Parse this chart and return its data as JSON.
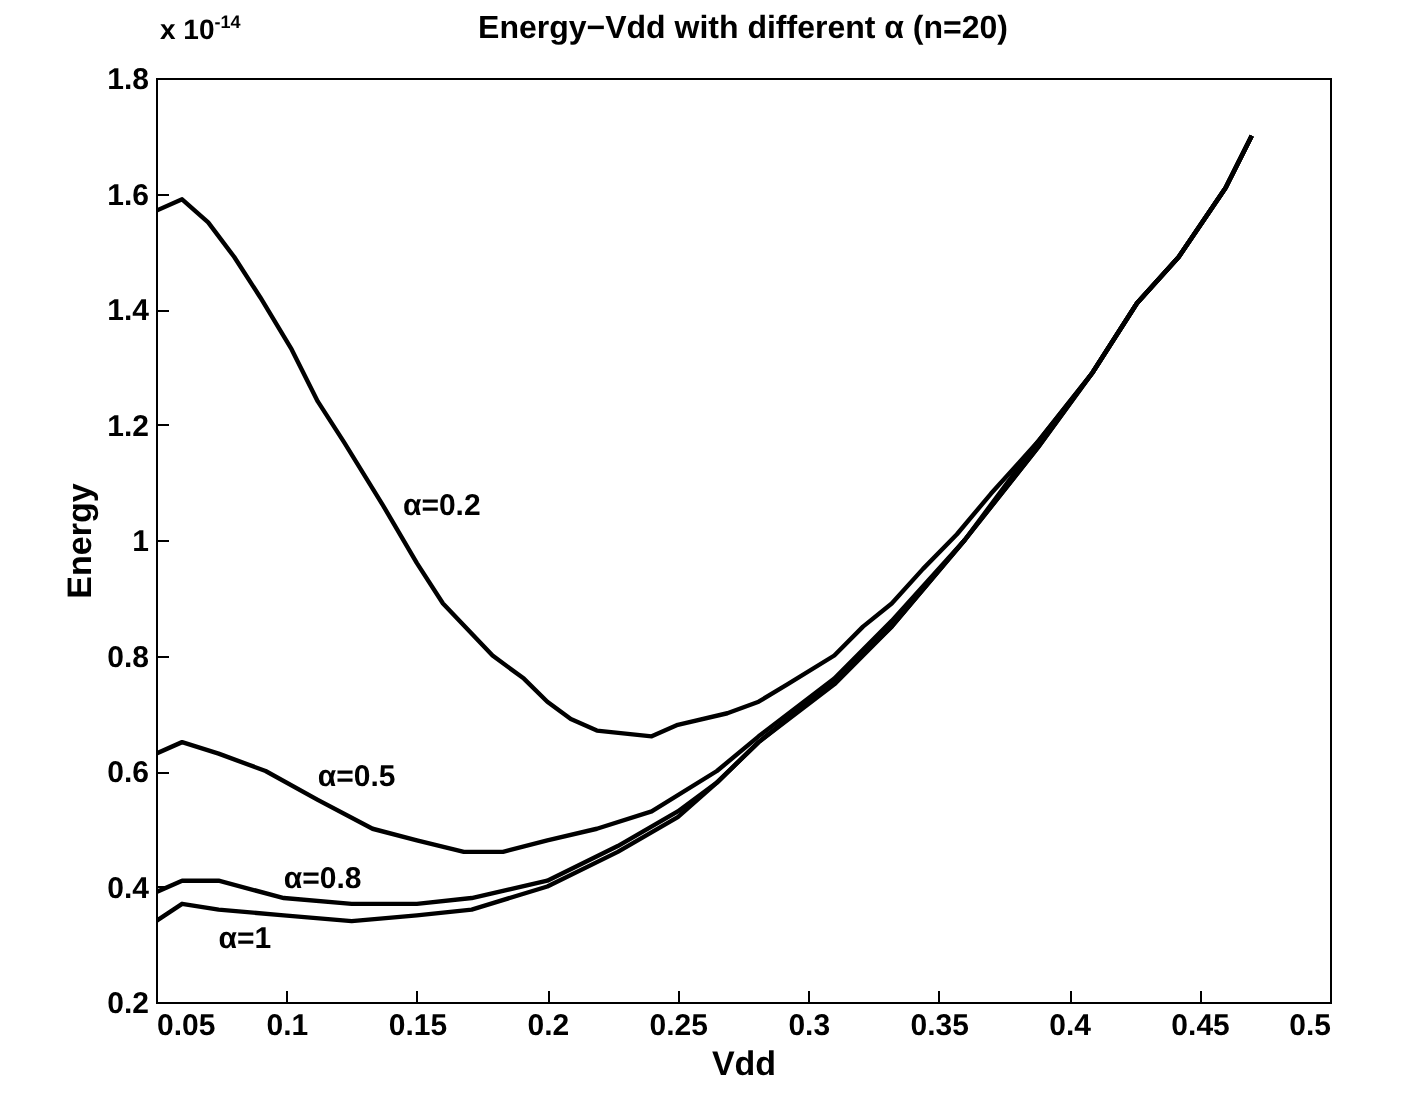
{
  "chart_data": {
    "type": "line",
    "title": "Energy−Vdd with different α (n=20)",
    "xlabel": "Vdd",
    "ylabel": "Energy",
    "xlim": [
      0.05,
      0.5
    ],
    "xticks": [
      0.05,
      0.1,
      0.15,
      0.2,
      0.25,
      0.3,
      0.35,
      0.4,
      0.45,
      0.5
    ],
    "ylim": [
      0.2,
      1.8
    ],
    "yticks": [
      0.2,
      0.4,
      0.6,
      0.8,
      1,
      1.2,
      1.4,
      1.6,
      1.8
    ],
    "line_style": "solid",
    "series": [
      {
        "name": "α=0.2",
        "color": "#000000",
        "x": [
          0.05,
          0.06,
          0.07,
          0.08,
          0.09,
          0.102,
          0.112,
          0.122,
          0.137,
          0.15,
          0.16,
          0.179,
          0.191,
          0.2,
          0.209,
          0.219,
          0.24,
          0.25,
          0.269,
          0.281,
          0.292,
          0.31,
          0.321,
          0.332,
          0.344,
          0.357,
          0.37,
          0.388,
          0.409,
          0.426,
          0.442,
          0.46,
          0.47
        ],
        "values": [
          1.57,
          1.59,
          1.55,
          1.49,
          1.42,
          1.33,
          1.24,
          1.17,
          1.06,
          0.96,
          0.89,
          0.8,
          0.76,
          0.72,
          0.69,
          0.67,
          0.66,
          0.68,
          0.7,
          0.72,
          0.75,
          0.8,
          0.85,
          0.89,
          0.95,
          1.01,
          1.08,
          1.17,
          1.29,
          1.41,
          1.49,
          1.61,
          1.7
        ]
      },
      {
        "name": "α=0.5",
        "color": "#000000",
        "x": [
          0.05,
          0.06,
          0.074,
          0.092,
          0.112,
          0.133,
          0.15,
          0.168,
          0.183,
          0.2,
          0.219,
          0.24,
          0.265,
          0.281,
          0.31,
          0.332,
          0.36,
          0.388,
          0.409,
          0.426,
          0.442,
          0.46,
          0.47
        ],
        "values": [
          0.63,
          0.65,
          0.63,
          0.6,
          0.55,
          0.5,
          0.48,
          0.46,
          0.46,
          0.48,
          0.5,
          0.53,
          0.6,
          0.66,
          0.76,
          0.86,
          1.0,
          1.17,
          1.29,
          1.41,
          1.49,
          1.61,
          1.7
        ]
      },
      {
        "name": "α=0.8",
        "color": "#000000",
        "x": [
          0.05,
          0.06,
          0.074,
          0.099,
          0.125,
          0.15,
          0.171,
          0.2,
          0.227,
          0.25,
          0.265,
          0.281,
          0.31,
          0.332,
          0.36,
          0.388,
          0.409,
          0.426,
          0.442,
          0.46,
          0.47
        ],
        "values": [
          0.39,
          0.41,
          0.41,
          0.38,
          0.37,
          0.37,
          0.38,
          0.41,
          0.47,
          0.53,
          0.58,
          0.65,
          0.755,
          0.85,
          1.0,
          1.16,
          1.29,
          1.41,
          1.49,
          1.61,
          1.7
        ]
      },
      {
        "name": "α=1",
        "color": "#000000",
        "x": [
          0.05,
          0.06,
          0.074,
          0.099,
          0.125,
          0.15,
          0.171,
          0.2,
          0.227,
          0.25,
          0.265,
          0.281,
          0.31,
          0.332,
          0.36,
          0.388,
          0.409,
          0.426,
          0.442,
          0.46,
          0.47
        ],
        "values": [
          0.34,
          0.37,
          0.36,
          0.35,
          0.34,
          0.35,
          0.36,
          0.4,
          0.46,
          0.52,
          0.58,
          0.65,
          0.75,
          0.85,
          1.0,
          1.16,
          1.29,
          1.41,
          1.49,
          1.61,
          1.7
        ]
      }
    ],
    "annotations": [
      "x 10$^{-14}$"
    ]
  }
}
